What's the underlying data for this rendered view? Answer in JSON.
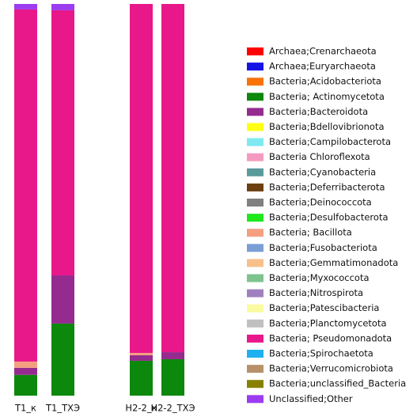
{
  "chart_data": {
    "type": "stacked_bar",
    "categories": [
      "T1_к",
      "T1_ТХЭ",
      "H2-2_к",
      "H2-2_ТХЭ"
    ],
    "series": [
      {
        "name": "Archaea;Crenarchaeota",
        "color": "#ff0000",
        "values": [
          0,
          0,
          0,
          0
        ]
      },
      {
        "name": "Archaea;Euryarchaeota",
        "color": "#1414e6",
        "values": [
          0,
          0,
          0,
          0
        ]
      },
      {
        "name": "Bacteria;Acidobacteriota",
        "color": "#f97306",
        "values": [
          0,
          0,
          0,
          0
        ]
      },
      {
        "name": "Bacteria; Actinomycetota",
        "color": "#0c880c",
        "values": [
          5.3,
          18.4,
          8.9,
          9.3
        ]
      },
      {
        "name": "Bacteria;Bacteroidota",
        "color": "#952b8f",
        "values": [
          1.8,
          12.3,
          1.4,
          1.8
        ]
      },
      {
        "name": "Bacteria;Bdellovibrionota",
        "color": "#ffff14",
        "values": [
          0,
          0,
          0,
          0
        ]
      },
      {
        "name": "Bacteria;Campilobacterota",
        "color": "#7fe8f0",
        "values": [
          0,
          0,
          0,
          0
        ]
      },
      {
        "name": "Bacteria Chloroflexota",
        "color": "#f49ac1",
        "values": [
          0,
          0,
          0,
          0
        ]
      },
      {
        "name": "Bacteria;Cyanobacteria",
        "color": "#5a9a9a",
        "values": [
          0,
          0,
          0,
          0
        ]
      },
      {
        "name": "Bacteria;Deferribacterota",
        "color": "#6b4010",
        "values": [
          0,
          0,
          0,
          0
        ]
      },
      {
        "name": "Bacteria;Deinococcota",
        "color": "#808080",
        "values": [
          0,
          0,
          0,
          0
        ]
      },
      {
        "name": "Bacteria;Desulfobacterota",
        "color": "#1ee81e",
        "values": [
          0,
          0,
          0,
          0
        ]
      },
      {
        "name": "Bacteria; Bacillota",
        "color": "#f4a080",
        "values": [
          1.6,
          0,
          0.6,
          0
        ]
      },
      {
        "name": "Bacteria;Fusobacteriota",
        "color": "#7b9fd4",
        "values": [
          0,
          0,
          0,
          0
        ]
      },
      {
        "name": "Bacteria;Gemmatimonadota",
        "color": "#f7c08a",
        "values": [
          0,
          0,
          0,
          0
        ]
      },
      {
        "name": "Bacteria;Myxococcota",
        "color": "#7ec48f",
        "values": [
          0,
          0,
          0,
          0
        ]
      },
      {
        "name": "Bacteria;Nitrospirota",
        "color": "#a080c0",
        "values": [
          0,
          0,
          0,
          0
        ]
      },
      {
        "name": "Bacteria;Patescibacteria",
        "color": "#fafaa0",
        "values": [
          0,
          0,
          0,
          0
        ]
      },
      {
        "name": "Bacteria;Planctomycetota",
        "color": "#c0c0c0",
        "values": [
          0,
          0,
          0,
          0
        ]
      },
      {
        "name": "Bacteria; Pseudomonadota",
        "color": "#e8188a",
        "values": [
          89.9,
          67.7,
          89.1,
          88.9
        ]
      },
      {
        "name": "Bacteria;Spirochaetota",
        "color": "#1eb0f0",
        "values": [
          0,
          0,
          0,
          0
        ]
      },
      {
        "name": "Bacteria;Verrucomicrobiota",
        "color": "#b8906a",
        "values": [
          0,
          0,
          0,
          0
        ]
      },
      {
        "name": "Bacteria;unclassified_Bacteria",
        "color": "#888000",
        "values": [
          0,
          0,
          0,
          0
        ]
      },
      {
        "name": "Unclassified;Other",
        "color": "#9b3cf0",
        "values": [
          1.4,
          1.6,
          0,
          0
        ]
      }
    ],
    "legend": "right"
  }
}
